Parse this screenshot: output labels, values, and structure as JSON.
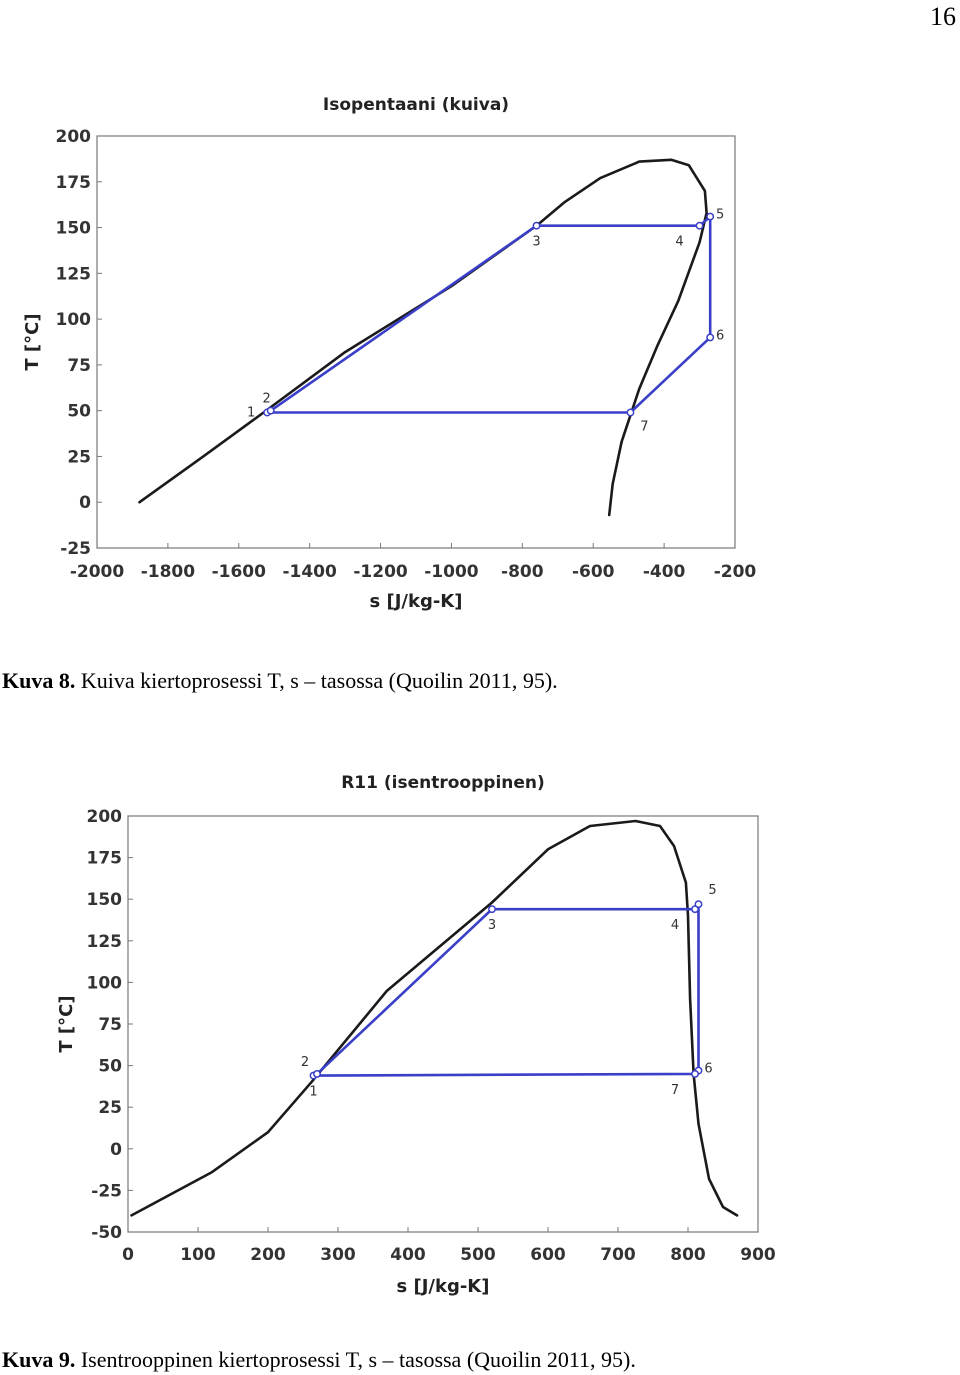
{
  "page_number": "16",
  "caption1": {
    "label": "Kuva 8.",
    "text": " Kuiva kiertoprosessi T, s – tasossa (Quoilin 2011, 95)."
  },
  "caption2": {
    "label": "Kuva 9.",
    "text": " Isentrooppinen kiertoprosessi T, s – tasossa (Quoilin 2011, 95)."
  },
  "chart_data": [
    {
      "type": "line",
      "title": "Isopentaani (kuiva)",
      "xlabel": "s [J/kg-K]",
      "ylabel": "T [°C]",
      "xlim": [
        -2000,
        -200
      ],
      "ylim": [
        -25,
        200
      ],
      "xticks": [
        -2000,
        -1800,
        -1600,
        -1400,
        -1200,
        -1000,
        -800,
        -600,
        -400,
        -200
      ],
      "yticks": [
        -25,
        0,
        25,
        50,
        75,
        100,
        125,
        150,
        175,
        200
      ],
      "dome": [
        [
          -1880,
          0
        ],
        [
          -1700,
          25
        ],
        [
          -1530,
          49
        ],
        [
          -1300,
          82
        ],
        [
          -1000,
          118
        ],
        [
          -760,
          151
        ],
        [
          -680,
          164
        ],
        [
          -580,
          177
        ],
        [
          -470,
          186
        ],
        [
          -380,
          187
        ],
        [
          -330,
          184
        ],
        [
          -285,
          170
        ],
        [
          -280,
          158
        ],
        [
          -300,
          142
        ],
        [
          -360,
          110
        ],
        [
          -420,
          85
        ],
        [
          -470,
          62
        ],
        [
          -520,
          33
        ],
        [
          -545,
          10
        ],
        [
          -555,
          -7
        ]
      ],
      "cycle": [
        [
          -1520,
          49
        ],
        [
          -1510,
          50
        ],
        [
          -760,
          151
        ],
        [
          -300,
          151
        ],
        [
          -270,
          156
        ],
        [
          -270,
          90
        ],
        [
          -495,
          49
        ],
        [
          -1520,
          49
        ]
      ],
      "points": [
        {
          "label": "1",
          "s": -1520,
          "T": 49,
          "lp": "left"
        },
        {
          "label": "2",
          "s": -1510,
          "T": 50,
          "lp": "above"
        },
        {
          "label": "3",
          "s": -760,
          "T": 151,
          "lp": "below"
        },
        {
          "label": "4",
          "s": -300,
          "T": 151,
          "lp": "belowleft"
        },
        {
          "label": "5",
          "s": -270,
          "T": 156,
          "lp": "right"
        },
        {
          "label": "6",
          "s": -270,
          "T": 90,
          "lp": "right"
        },
        {
          "label": "7",
          "s": -495,
          "T": 49,
          "lp": "belowright"
        }
      ]
    },
    {
      "type": "line",
      "title": "R11 (isentrooppinen)",
      "xlabel": "s [J/kg-K]",
      "ylabel": "T [°C]",
      "xlim": [
        0,
        900
      ],
      "ylim": [
        -50,
        200
      ],
      "xticks": [
        0,
        100,
        200,
        300,
        400,
        500,
        600,
        700,
        800,
        900
      ],
      "yticks": [
        -50,
        -25,
        0,
        25,
        50,
        75,
        100,
        125,
        150,
        175,
        200
      ],
      "dome": [
        [
          5,
          -40
        ],
        [
          120,
          -14
        ],
        [
          200,
          10
        ],
        [
          262,
          40
        ],
        [
          370,
          95
        ],
        [
          520,
          148
        ],
        [
          600,
          180
        ],
        [
          660,
          194
        ],
        [
          725,
          197
        ],
        [
          760,
          194
        ],
        [
          780,
          182
        ],
        [
          797,
          160
        ],
        [
          800,
          140
        ],
        [
          803,
          90
        ],
        [
          808,
          45
        ],
        [
          815,
          15
        ],
        [
          830,
          -18
        ],
        [
          850,
          -35
        ],
        [
          870,
          -40
        ]
      ],
      "cycle": [
        [
          265,
          44
        ],
        [
          270,
          45
        ],
        [
          520,
          144
        ],
        [
          810,
          144
        ],
        [
          815,
          147
        ],
        [
          815,
          47
        ],
        [
          810,
          45
        ],
        [
          265,
          44
        ]
      ],
      "points": [
        {
          "label": "1",
          "s": 265,
          "T": 44,
          "lp": "below"
        },
        {
          "label": "2",
          "s": 270,
          "T": 45,
          "lp": "aboveleft"
        },
        {
          "label": "3",
          "s": 520,
          "T": 144,
          "lp": "below"
        },
        {
          "label": "4",
          "s": 810,
          "T": 144,
          "lp": "belowleft"
        },
        {
          "label": "5",
          "s": 815,
          "T": 147,
          "lp": "aboveright"
        },
        {
          "label": "6",
          "s": 815,
          "T": 47,
          "lp": "right"
        },
        {
          "label": "7",
          "s": 810,
          "T": 45,
          "lp": "belowleft"
        }
      ]
    }
  ]
}
